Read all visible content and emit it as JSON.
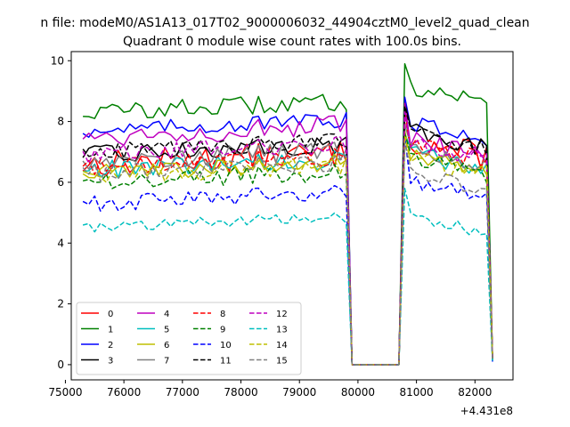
{
  "chart_data": {
    "type": "line",
    "suptitle": "n file: modeM0/AS1A13_017T02_9000006032_44904cztM0_level2_quad_clean",
    "title": "Quadrant 0 module wise count rates with 100.0s bins.",
    "xlabel": "",
    "ylabel": "",
    "x_offset_label": "+4.431e8",
    "xlim": [
      75100,
      82650
    ],
    "ylim": [
      -0.5,
      10.3
    ],
    "x_ticks": [
      75000,
      76000,
      77000,
      78000,
      79000,
      80000,
      81000,
      82000
    ],
    "x_tick_labels": [
      "75000",
      "76000",
      "77000",
      "78000",
      "79000",
      "80000",
      "81000",
      "82000"
    ],
    "y_ticks": [
      0,
      2,
      4,
      6,
      8,
      10
    ],
    "y_tick_labels": [
      "0",
      "2",
      "4",
      "6",
      "8",
      "10"
    ],
    "grid": false,
    "legend_position": "lower-left",
    "legend_columns": 4,
    "segments": [
      {
        "start": 75300,
        "end": 79800,
        "step": 100
      },
      {
        "start": 79900,
        "end": 80700,
        "step": 100
      },
      {
        "start": 80800,
        "end": 82300,
        "step": 100
      }
    ],
    "gap_tail": [
      7.0,
      0.0
    ],
    "series": [
      {
        "name": "0",
        "color": "#ff0000",
        "dash": "solid",
        "level1": 6.6,
        "level2": 7.4,
        "amp": 0.45,
        "end": 0.3,
        "peak": 8.4
      },
      {
        "name": "1",
        "color": "#008000",
        "dash": "solid",
        "level1": 8.3,
        "level2": 9.2,
        "amp": 0.3,
        "end": 0.2,
        "peak": 9.9
      },
      {
        "name": "2",
        "color": "#0000ff",
        "dash": "solid",
        "level1": 7.7,
        "level2": 8.0,
        "amp": 0.25,
        "end": 0.1,
        "peak": 8.8
      },
      {
        "name": "3",
        "color": "#000000",
        "dash": "solid",
        "level1": 6.9,
        "level2": 7.7,
        "amp": 0.3,
        "end": 0.2,
        "peak": 8.6
      },
      {
        "name": "4",
        "color": "#bf00bf",
        "dash": "solid",
        "level1": 7.5,
        "level2": 7.4,
        "amp": 0.35,
        "end": 0.2,
        "peak": 8.6
      },
      {
        "name": "5",
        "color": "#00bfbf",
        "dash": "solid",
        "level1": 6.4,
        "level2": 7.0,
        "amp": 0.3,
        "end": 0.15,
        "peak": 7.6
      },
      {
        "name": "6",
        "color": "#bfbf00",
        "dash": "solid",
        "level1": 6.3,
        "level2": 6.9,
        "amp": 0.3,
        "end": 0.2,
        "peak": 7.7
      },
      {
        "name": "7",
        "color": "#808080",
        "dash": "solid",
        "level1": 6.7,
        "level2": 7.1,
        "amp": 0.3,
        "end": 0.2,
        "peak": 7.9
      },
      {
        "name": "8",
        "color": "#ff0000",
        "dash": "dashed",
        "level1": 6.5,
        "level2": 7.3,
        "amp": 0.3,
        "end": 0.2,
        "peak": 8.2
      },
      {
        "name": "9",
        "color": "#008000",
        "dash": "dashed",
        "level1": 6.0,
        "level2": 6.8,
        "amp": 0.3,
        "end": 0.2,
        "peak": 7.6
      },
      {
        "name": "10",
        "color": "#0000ff",
        "dash": "dashed",
        "level1": 5.3,
        "level2": 6.1,
        "amp": 0.3,
        "end": 0.2,
        "peak": 7.5
      },
      {
        "name": "11",
        "color": "#000000",
        "dash": "dashed",
        "level1": 7.0,
        "level2": 7.6,
        "amp": 0.3,
        "end": 0.2,
        "peak": 8.5
      },
      {
        "name": "12",
        "color": "#bf00bf",
        "dash": "dashed",
        "level1": 6.9,
        "level2": 7.3,
        "amp": 0.3,
        "end": 0.2,
        "peak": 8.3
      },
      {
        "name": "13",
        "color": "#00bfbf",
        "dash": "dashed",
        "level1": 4.5,
        "level2": 4.9,
        "amp": 0.2,
        "end": 0.1,
        "peak": 5.8
      },
      {
        "name": "14",
        "color": "#bfbf00",
        "dash": "dashed",
        "level1": 6.2,
        "level2": 6.8,
        "amp": 0.3,
        "end": 0.2,
        "peak": 7.5
      },
      {
        "name": "15",
        "color": "#808080",
        "dash": "dashed",
        "level1": 6.3,
        "level2": 6.3,
        "amp": 0.3,
        "end": 0.15,
        "peak": 7.3
      }
    ]
  }
}
